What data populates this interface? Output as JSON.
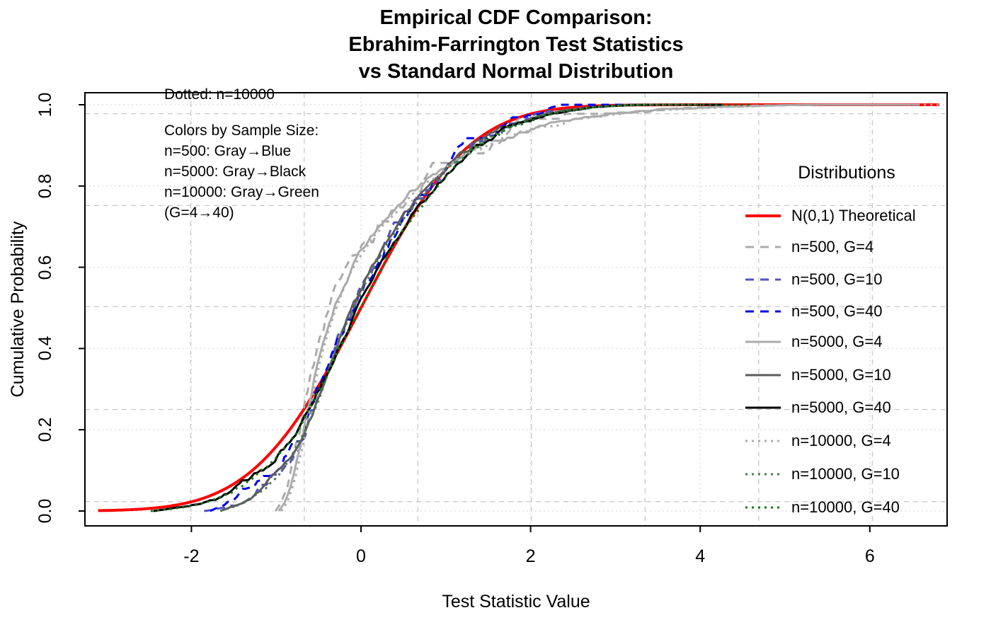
{
  "title": {
    "line1": "Empirical CDF Comparison:",
    "line2": "Ebrahim-Farrington Test Statistics",
    "line3": "vs Standard Normal Distribution"
  },
  "axis": {
    "x_label": "Test Statistic Value",
    "y_label": "Cumulative Probability"
  },
  "annotations": {
    "dotted_note": "Dotted: n=10000",
    "colors_header": "Colors by Sample Size:",
    "line1": "n=500: Gray→Blue",
    "line2": "n=5000: Gray→Black",
    "line3": "n=10000: Gray→Green",
    "line4": "(G=4→40)"
  },
  "legend": {
    "title": "Distributions",
    "items": [
      {
        "label": "N(0,1) Theoretical",
        "color": "#FF0000",
        "style": "solid",
        "width": 4
      },
      {
        "label": "n=500, G=4",
        "color": "#ABABAB",
        "style": "dashed",
        "width": 3
      },
      {
        "label": "n=500, G=10",
        "color": "#5252C4",
        "style": "dashed",
        "width": 3
      },
      {
        "label": "n=500, G=40",
        "color": "#0000EE",
        "style": "dashed",
        "width": 3
      },
      {
        "label": "n=5000, G=4",
        "color": "#ABABAB",
        "style": "solid",
        "width": 3
      },
      {
        "label": "n=5000, G=10",
        "color": "#5C5C5C",
        "style": "solid",
        "width": 3
      },
      {
        "label": "n=5000, G=40",
        "color": "#000000",
        "style": "solid",
        "width": 3
      },
      {
        "label": "n=10000, G=4",
        "color": "#ABABAB",
        "style": "dotted",
        "width": 3
      },
      {
        "label": "n=10000, G=10",
        "color": "#4A7A4A",
        "style": "dotted",
        "width": 3
      },
      {
        "label": "n=10000, G=40",
        "color": "#0B7A0B",
        "style": "dotted",
        "width": 3
      }
    ]
  },
  "chart_data": {
    "type": "line",
    "title": "Empirical CDF Comparison: Ebrahim-Farrington Test Statistics vs Standard Normal Distribution",
    "xlabel": "Test Statistic Value",
    "ylabel": "Cumulative Probability",
    "xlim": [
      -3.26,
      6.93
    ],
    "ylim": [
      -0.04,
      1.03
    ],
    "x_ticks": {
      "values": [
        -2,
        0,
        2,
        4,
        6
      ],
      "labels": [
        "-2",
        "0",
        "2",
        "4",
        "6"
      ]
    },
    "y_ticks": {
      "values": [
        0,
        0.2,
        0.4,
        0.6,
        0.8,
        1.0
      ],
      "labels": [
        "0.0",
        "0.2",
        "0.4",
        "0.6",
        "0.8",
        "1.0"
      ]
    },
    "grid": {
      "dotted_x": [
        -2,
        0,
        2,
        4,
        6
      ],
      "dotted_y": [
        0,
        0.2,
        0.4,
        0.6,
        0.8,
        1.0
      ],
      "dashed_x": [
        -2.01,
        -0.67,
        0.67,
        2.01,
        3.35,
        4.69,
        6.03
      ],
      "dashed_y": [
        0.023,
        0.25,
        0.503,
        0.752,
        0.978
      ],
      "dotted_color": "#DBDBDB",
      "dashed_color": "#C9C9C9"
    },
    "legend_position": "right",
    "series": [
      {
        "name": "theoretical-n01",
        "label": "N(0,1) Theoretical",
        "color": "#FF0000",
        "style": "solid",
        "width": 4,
        "normal": true,
        "range": [
          -3.1,
          6.85
        ]
      },
      {
        "name": "n500-G4",
        "label": "n=500, G=4",
        "color": "#ABABAB",
        "style": "dashed",
        "width": 3,
        "amp": 0.017,
        "seed": 11,
        "end": 6.65,
        "xshift": -0.04,
        "anchors": [
          [
            -0.97,
            0
          ],
          [
            -0.9,
            0.02
          ],
          [
            -0.82,
            0.065
          ],
          [
            -0.72,
            0.155
          ],
          [
            -0.62,
            0.26
          ],
          [
            -0.52,
            0.36
          ],
          [
            -0.42,
            0.44
          ],
          [
            -0.32,
            0.505
          ],
          [
            -0.2,
            0.565
          ],
          [
            -0.08,
            0.615
          ],
          [
            0.05,
            0.655
          ],
          [
            0.2,
            0.695
          ],
          [
            0.4,
            0.745
          ],
          [
            0.6,
            0.787
          ],
          [
            0.8,
            0.82
          ],
          [
            1.0,
            0.848
          ],
          [
            1.25,
            0.878
          ],
          [
            1.5,
            0.902
          ],
          [
            1.8,
            0.925
          ],
          [
            2.1,
            0.944
          ],
          [
            2.5,
            0.962
          ],
          [
            3.0,
            0.977
          ],
          [
            3.5,
            0.987
          ],
          [
            4.2,
            0.994
          ],
          [
            5.0,
            0.999
          ],
          [
            5.4,
            1
          ]
        ]
      },
      {
        "name": "n500-G10",
        "label": "n=500, G=10",
        "color": "#5252C4",
        "style": "dashed",
        "width": 3,
        "amp": 0.016,
        "seed": 22,
        "end": 3.75,
        "xshift": 0,
        "anchors": [
          [
            -1.85,
            0
          ],
          [
            -1.68,
            0.006
          ],
          [
            -1.5,
            0.016
          ],
          [
            -1.32,
            0.03
          ],
          [
            -1.15,
            0.055
          ],
          [
            -1.0,
            0.085
          ],
          [
            -0.85,
            0.13
          ],
          [
            -0.7,
            0.185
          ],
          [
            -0.55,
            0.255
          ],
          [
            -0.4,
            0.34
          ],
          [
            -0.25,
            0.425
          ],
          [
            -0.1,
            0.5
          ],
          [
            0.05,
            0.565
          ],
          [
            0.2,
            0.625
          ],
          [
            0.4,
            0.69
          ],
          [
            0.6,
            0.75
          ],
          [
            0.8,
            0.8
          ],
          [
            1.0,
            0.845
          ],
          [
            1.2,
            0.882
          ],
          [
            1.45,
            0.917
          ],
          [
            1.7,
            0.944
          ],
          [
            2.0,
            0.967
          ],
          [
            2.3,
            0.983
          ],
          [
            2.7,
            0.994
          ],
          [
            3.1,
            0.999
          ],
          [
            3.35,
            1
          ]
        ]
      },
      {
        "name": "n500-G40",
        "label": "n=500, G=40",
        "color": "#0000EE",
        "style": "dashed",
        "width": 3,
        "amp": 0.018,
        "seed": 33,
        "end": 4.1,
        "xshift": 0,
        "anchors": [
          [
            -1.78,
            0
          ],
          [
            -1.6,
            0.012
          ],
          [
            -1.45,
            0.03
          ],
          [
            -1.28,
            0.056
          ],
          [
            -1.1,
            0.088
          ],
          [
            -0.95,
            0.122
          ],
          [
            -0.78,
            0.17
          ],
          [
            -0.6,
            0.245
          ],
          [
            -0.42,
            0.33
          ],
          [
            -0.25,
            0.41
          ],
          [
            -0.08,
            0.49
          ],
          [
            0.1,
            0.565
          ],
          [
            0.3,
            0.64
          ],
          [
            0.5,
            0.71
          ],
          [
            0.7,
            0.765
          ],
          [
            0.9,
            0.815
          ],
          [
            1.1,
            0.858
          ],
          [
            1.3,
            0.895
          ],
          [
            1.5,
            0.924
          ],
          [
            1.7,
            0.948
          ],
          [
            1.95,
            0.97
          ],
          [
            2.15,
            0.985
          ],
          [
            2.35,
            1
          ]
        ]
      },
      {
        "name": "n5000-G4",
        "label": "n=5000, G=4",
        "color": "#ABABAB",
        "style": "solid",
        "width": 3,
        "amp": 0.007,
        "seed": 44,
        "end": 6.5,
        "xshift": 0,
        "anchors": [
          [
            -0.97,
            0
          ],
          [
            -0.9,
            0.02
          ],
          [
            -0.82,
            0.065
          ],
          [
            -0.72,
            0.155
          ],
          [
            -0.62,
            0.26
          ],
          [
            -0.52,
            0.36
          ],
          [
            -0.42,
            0.44
          ],
          [
            -0.32,
            0.505
          ],
          [
            -0.2,
            0.565
          ],
          [
            -0.08,
            0.615
          ],
          [
            0.05,
            0.655
          ],
          [
            0.2,
            0.695
          ],
          [
            0.4,
            0.745
          ],
          [
            0.6,
            0.787
          ],
          [
            0.8,
            0.82
          ],
          [
            1.0,
            0.848
          ],
          [
            1.25,
            0.878
          ],
          [
            1.5,
            0.902
          ],
          [
            1.8,
            0.925
          ],
          [
            2.1,
            0.944
          ],
          [
            2.5,
            0.962
          ],
          [
            3.0,
            0.977
          ],
          [
            3.5,
            0.987
          ],
          [
            4.2,
            0.994
          ],
          [
            5.0,
            0.999
          ],
          [
            5.4,
            1
          ]
        ]
      },
      {
        "name": "n5000-G10",
        "label": "n=5000, G=10",
        "color": "#5C5C5C",
        "style": "solid",
        "width": 3,
        "amp": 0.006,
        "seed": 55,
        "end": 3.9,
        "xshift": 0,
        "anchors": [
          [
            -1.66,
            0
          ],
          [
            -1.5,
            0.012
          ],
          [
            -1.32,
            0.03
          ],
          [
            -1.15,
            0.055
          ],
          [
            -1.0,
            0.085
          ],
          [
            -0.85,
            0.13
          ],
          [
            -0.7,
            0.185
          ],
          [
            -0.55,
            0.255
          ],
          [
            -0.4,
            0.34
          ],
          [
            -0.25,
            0.425
          ],
          [
            -0.1,
            0.5
          ],
          [
            0.05,
            0.565
          ],
          [
            0.2,
            0.625
          ],
          [
            0.4,
            0.69
          ],
          [
            0.6,
            0.75
          ],
          [
            0.8,
            0.8
          ],
          [
            1.0,
            0.845
          ],
          [
            1.2,
            0.882
          ],
          [
            1.45,
            0.917
          ],
          [
            1.7,
            0.944
          ],
          [
            2.0,
            0.967
          ],
          [
            2.3,
            0.983
          ],
          [
            2.7,
            0.994
          ],
          [
            3.1,
            0.999
          ],
          [
            3.35,
            1
          ]
        ]
      },
      {
        "name": "n5000-G40",
        "label": "n=5000, G=40",
        "color": "#000000",
        "style": "solid",
        "width": 3,
        "amp": 0.006,
        "seed": 66,
        "end": 4.3,
        "xshift": 0,
        "anchors": [
          [
            -2.45,
            0
          ],
          [
            -2.3,
            0.004
          ],
          [
            -2.05,
            0.011
          ],
          [
            -1.8,
            0.023
          ],
          [
            -1.55,
            0.045
          ],
          [
            -1.3,
            0.078
          ],
          [
            -1.1,
            0.112
          ],
          [
            -0.9,
            0.158
          ],
          [
            -0.7,
            0.218
          ],
          [
            -0.5,
            0.3
          ],
          [
            -0.3,
            0.39
          ],
          [
            -0.1,
            0.475
          ],
          [
            0.1,
            0.555
          ],
          [
            0.3,
            0.63
          ],
          [
            0.5,
            0.7
          ],
          [
            0.7,
            0.757
          ],
          [
            0.9,
            0.808
          ],
          [
            1.1,
            0.851
          ],
          [
            1.3,
            0.888
          ],
          [
            1.55,
            0.923
          ],
          [
            1.8,
            0.949
          ],
          [
            2.1,
            0.971
          ],
          [
            2.4,
            0.985
          ],
          [
            2.8,
            0.995
          ],
          [
            3.15,
            0.999
          ],
          [
            3.4,
            1
          ]
        ]
      },
      {
        "name": "n10000-G4",
        "label": "n=10000, G=4",
        "color": "#ABABAB",
        "style": "dotted",
        "width": 3,
        "amp": 0.0035,
        "seed": 77,
        "end": 6.85,
        "xshift": 0.03,
        "anchors": [
          [
            -0.97,
            0
          ],
          [
            -0.9,
            0.02
          ],
          [
            -0.82,
            0.065
          ],
          [
            -0.72,
            0.155
          ],
          [
            -0.62,
            0.26
          ],
          [
            -0.52,
            0.36
          ],
          [
            -0.42,
            0.44
          ],
          [
            -0.32,
            0.505
          ],
          [
            -0.2,
            0.565
          ],
          [
            -0.08,
            0.615
          ],
          [
            0.05,
            0.655
          ],
          [
            0.2,
            0.695
          ],
          [
            0.4,
            0.745
          ],
          [
            0.6,
            0.787
          ],
          [
            0.8,
            0.82
          ],
          [
            1.0,
            0.848
          ],
          [
            1.25,
            0.878
          ],
          [
            1.5,
            0.902
          ],
          [
            1.8,
            0.925
          ],
          [
            2.1,
            0.944
          ],
          [
            2.5,
            0.962
          ],
          [
            3.0,
            0.977
          ],
          [
            3.5,
            0.987
          ],
          [
            4.2,
            0.994
          ],
          [
            5.0,
            0.999
          ],
          [
            5.4,
            1
          ]
        ]
      },
      {
        "name": "n10000-G10",
        "label": "n=10000, G=10",
        "color": "#4A7A4A",
        "style": "dotted",
        "width": 3,
        "amp": 0.0035,
        "seed": 88,
        "end": 4.0,
        "xshift": 0.02,
        "anchors": [
          [
            -1.68,
            0
          ],
          [
            -1.5,
            0.012
          ],
          [
            -1.32,
            0.03
          ],
          [
            -1.15,
            0.055
          ],
          [
            -1.0,
            0.085
          ],
          [
            -0.85,
            0.13
          ],
          [
            -0.7,
            0.185
          ],
          [
            -0.55,
            0.255
          ],
          [
            -0.4,
            0.34
          ],
          [
            -0.25,
            0.425
          ],
          [
            -0.1,
            0.5
          ],
          [
            0.05,
            0.565
          ],
          [
            0.2,
            0.625
          ],
          [
            0.4,
            0.69
          ],
          [
            0.6,
            0.75
          ],
          [
            0.8,
            0.8
          ],
          [
            1.0,
            0.845
          ],
          [
            1.2,
            0.882
          ],
          [
            1.45,
            0.917
          ],
          [
            1.7,
            0.944
          ],
          [
            2.0,
            0.967
          ],
          [
            2.3,
            0.983
          ],
          [
            2.7,
            0.994
          ],
          [
            3.1,
            0.999
          ],
          [
            3.35,
            1
          ]
        ]
      },
      {
        "name": "n10000-G40",
        "label": "n=10000, G=40",
        "color": "#0B7A0B",
        "style": "dotted",
        "width": 3,
        "amp": 0.0035,
        "seed": 99,
        "end": 4.6,
        "xshift": 0.02,
        "anchors": [
          [
            -2.5,
            0
          ],
          [
            -2.3,
            0.004
          ],
          [
            -2.05,
            0.011
          ],
          [
            -1.8,
            0.023
          ],
          [
            -1.55,
            0.045
          ],
          [
            -1.3,
            0.078
          ],
          [
            -1.1,
            0.112
          ],
          [
            -0.9,
            0.158
          ],
          [
            -0.7,
            0.218
          ],
          [
            -0.5,
            0.3
          ],
          [
            -0.3,
            0.39
          ],
          [
            -0.1,
            0.475
          ],
          [
            0.1,
            0.555
          ],
          [
            0.3,
            0.63
          ],
          [
            0.5,
            0.7
          ],
          [
            0.7,
            0.757
          ],
          [
            0.9,
            0.808
          ],
          [
            1.1,
            0.851
          ],
          [
            1.3,
            0.888
          ],
          [
            1.55,
            0.923
          ],
          [
            1.8,
            0.949
          ],
          [
            2.1,
            0.971
          ],
          [
            2.4,
            0.985
          ],
          [
            2.8,
            0.995
          ],
          [
            3.15,
            0.999
          ],
          [
            3.4,
            1
          ]
        ]
      }
    ]
  }
}
